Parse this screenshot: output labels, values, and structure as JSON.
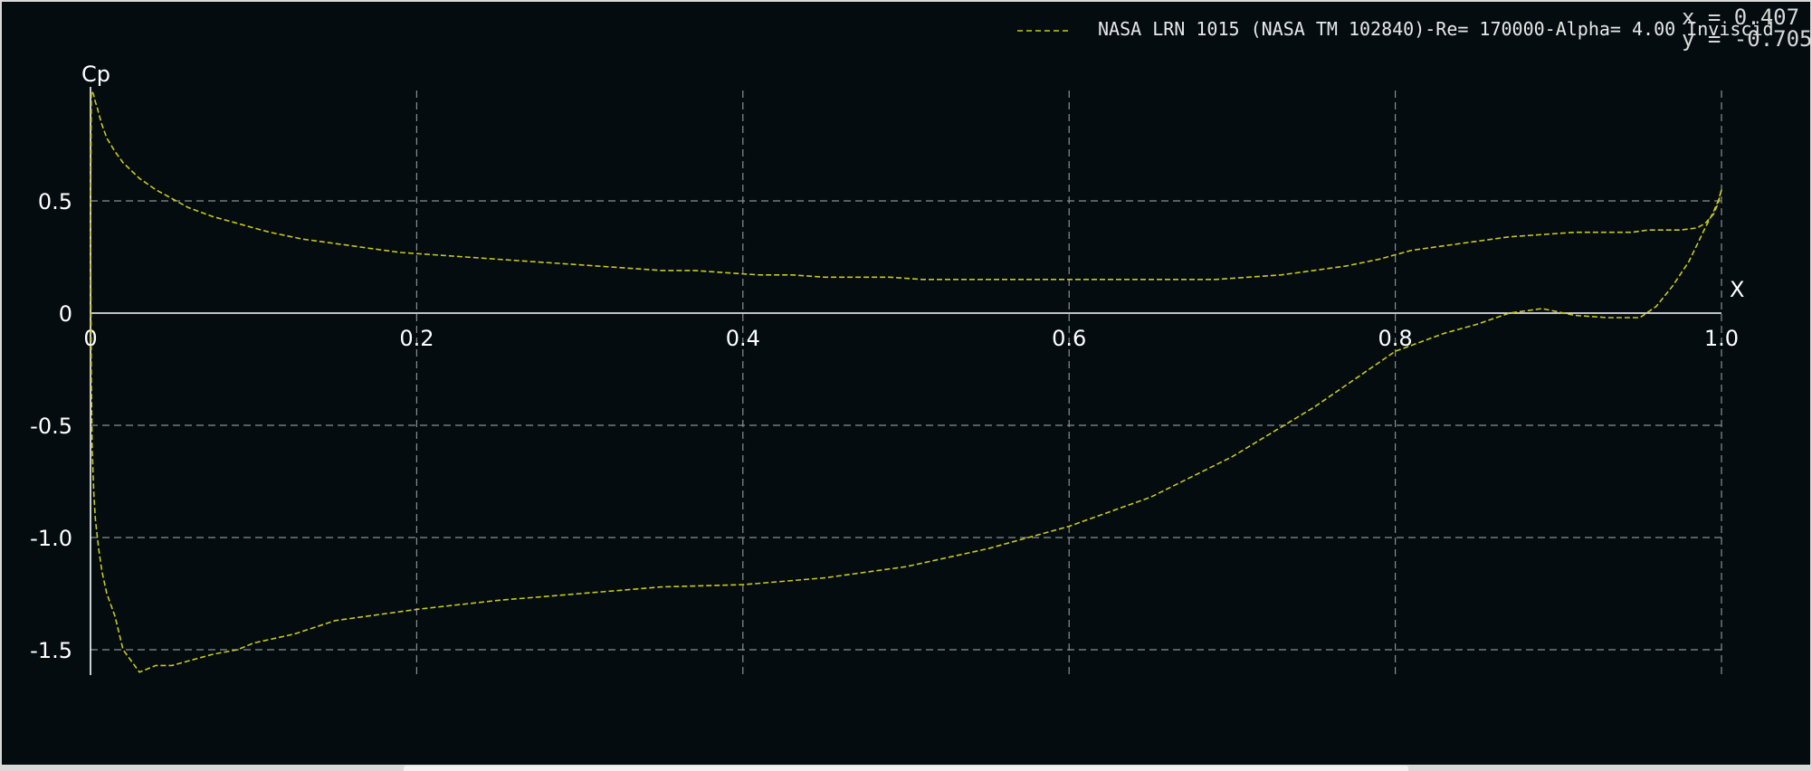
{
  "window": {
    "background": "#040c10",
    "axis_color": "#ffffff",
    "grid_color": "#8a8f92",
    "series_color": "#c8c81e"
  },
  "cursor_readout": {
    "x_text": "x =  0.407",
    "y_text": "y = -0.705"
  },
  "chart_data": {
    "type": "line",
    "title": "",
    "xlabel": "X",
    "ylabel": "Cp",
    "xlim": [
      0,
      1.0
    ],
    "ylim": [
      -1.6,
      0.95
    ],
    "grid": true,
    "y_inverted_sign_convention": false,
    "x_ticks": [
      {
        "value": 0,
        "label": "0"
      },
      {
        "value": 0.2,
        "label": "0.2"
      },
      {
        "value": 0.4,
        "label": "0.4"
      },
      {
        "value": 0.6,
        "label": "0.6"
      },
      {
        "value": 0.8,
        "label": "0.8"
      },
      {
        "value": 1.0,
        "label": "1.0"
      }
    ],
    "y_ticks": [
      {
        "value": 0.5,
        "label": "0.5"
      },
      {
        "value": 0,
        "label": "0"
      },
      {
        "value": -0.5,
        "label": "-0.5"
      },
      {
        "value": -1.0,
        "label": "-1.0"
      },
      {
        "value": -1.5,
        "label": "-1.5"
      }
    ],
    "legend_position": "top",
    "series": [
      {
        "name": "NASA LRN 1015 (NASA TM 102840)-Re=  170000-Alpha= 4.00 Inviscid",
        "line_style": "dashed",
        "x": [
          1.0,
          0.998,
          0.995,
          0.99,
          0.985,
          0.975,
          0.965,
          0.955,
          0.945,
          0.93,
          0.91,
          0.89,
          0.87,
          0.85,
          0.83,
          0.81,
          0.8,
          0.79,
          0.77,
          0.75,
          0.73,
          0.71,
          0.69,
          0.67,
          0.65,
          0.63,
          0.61,
          0.59,
          0.57,
          0.55,
          0.53,
          0.51,
          0.49,
          0.47,
          0.45,
          0.43,
          0.41,
          0.39,
          0.37,
          0.35,
          0.33,
          0.31,
          0.29,
          0.27,
          0.25,
          0.23,
          0.21,
          0.19,
          0.17,
          0.15,
          0.13,
          0.11,
          0.1,
          0.09,
          0.075,
          0.06,
          0.05,
          0.04,
          0.03,
          0.02,
          0.015,
          0.01,
          0.007,
          0.005,
          0.004,
          0.003,
          0.002,
          0.001,
          0.0005,
          0.0,
          0.0005,
          0.001,
          0.002,
          0.003,
          0.005,
          0.007,
          0.01,
          0.015,
          0.02,
          0.03,
          0.04,
          0.05,
          0.06,
          0.075,
          0.09,
          0.1,
          0.125,
          0.15,
          0.2,
          0.25,
          0.3,
          0.35,
          0.4,
          0.45,
          0.5,
          0.55,
          0.6,
          0.65,
          0.7,
          0.75,
          0.8,
          0.83,
          0.85,
          0.87,
          0.89,
          0.91,
          0.93,
          0.95,
          0.96,
          0.97,
          0.98,
          0.99,
          0.995,
          0.998,
          1.0
        ],
        "y": [
          0.55,
          0.49,
          0.44,
          0.4,
          0.38,
          0.37,
          0.37,
          0.37,
          0.36,
          0.36,
          0.36,
          0.35,
          0.34,
          0.32,
          0.3,
          0.28,
          0.26,
          0.24,
          0.21,
          0.19,
          0.17,
          0.16,
          0.15,
          0.15,
          0.15,
          0.15,
          0.15,
          0.15,
          0.15,
          0.15,
          0.15,
          0.15,
          0.16,
          0.16,
          0.16,
          0.17,
          0.17,
          0.18,
          0.19,
          0.19,
          0.2,
          0.21,
          0.22,
          0.23,
          0.24,
          0.25,
          0.26,
          0.27,
          0.29,
          0.31,
          0.33,
          0.36,
          0.38,
          0.4,
          0.43,
          0.47,
          0.51,
          0.55,
          0.6,
          0.67,
          0.72,
          0.78,
          0.84,
          0.89,
          0.92,
          0.94,
          0.97,
          0.99,
          0.98,
          0.4,
          -0.3,
          -0.6,
          -0.8,
          -0.92,
          -1.05,
          -1.15,
          -1.25,
          -1.35,
          -1.5,
          -1.6,
          -1.57,
          -1.57,
          -1.55,
          -1.52,
          -1.5,
          -1.47,
          -1.43,
          -1.37,
          -1.32,
          -1.28,
          -1.25,
          -1.22,
          -1.21,
          -1.18,
          -1.13,
          -1.05,
          -0.95,
          -0.82,
          -0.64,
          -0.42,
          -0.17,
          -0.09,
          -0.05,
          0.0,
          0.02,
          -0.01,
          -0.02,
          -0.02,
          0.03,
          0.12,
          0.23,
          0.38,
          0.45,
          0.5,
          0.55
        ]
      }
    ]
  }
}
